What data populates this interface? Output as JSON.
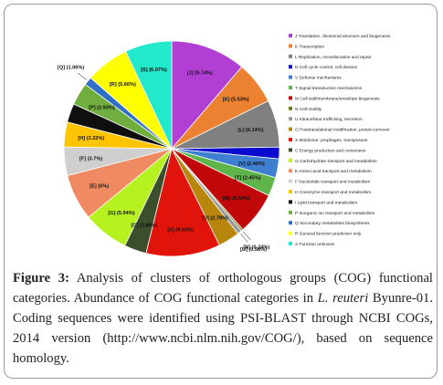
{
  "caption": {
    "figure_label": "Figure 3:",
    "text_part1": " Analysis of clusters of orthologous groups (COG) functional categories. Abundance of COG functional categories in ",
    "species": "L. reuteri",
    "text_part2": " Byunre-01. Coding sequences were identified using PSI-BLAST through NCBI COGs, 2014 version (http://www.ncbi.nlm.nih.gov/COG/), based on sequence homology."
  },
  "chart_data": {
    "type": "pie",
    "title": "",
    "slices": [
      {
        "code": "J",
        "label": "[J] (9.74%)",
        "value": 9.74,
        "color": "#b13fd4",
        "legend": "J Translation, ribosomal structure and biogenesis"
      },
      {
        "code": "K",
        "label": "[K] (5.53%)",
        "value": 5.53,
        "color": "#ec8132",
        "legend": "K Transcription"
      },
      {
        "code": "L",
        "label": "[L] (6.14%)",
        "value": 6.14,
        "color": "#808080",
        "legend": "L Replication, recombination and repair"
      },
      {
        "code": "D",
        "label": "",
        "value": 1.5,
        "color": "#0b0bcf",
        "legend": "D Cell cycle control, cell division"
      },
      {
        "code": "V",
        "label": "[V] (2.45%)",
        "value": 2.45,
        "color": "#3e7fd1",
        "legend": "V Defense mechanisms"
      },
      {
        "code": "T",
        "label": "[T] (2.45%)",
        "value": 2.45,
        "color": "#5fb54a",
        "legend": "T Signal transduction mechanisms"
      },
      {
        "code": "M",
        "label": "[M] (5.50%)",
        "value": 5.5,
        "color": "#c0080b",
        "legend": "M Cell wall/membrane/envelope biogenesis"
      },
      {
        "code": "N",
        "label": "[N] (0.24%)",
        "value": 0.24,
        "color": "#6d7f12",
        "legend": "N Cell motility"
      },
      {
        "code": "U",
        "label": "[U] (0.58%)",
        "value": 0.58,
        "color": "#9a9a9a",
        "legend": "U Intracellular trafficking, secretion"
      },
      {
        "code": "O",
        "label": "[O] (2.78%)",
        "value": 2.78,
        "color": "#b8860b",
        "legend": "O Posttranslational modification, protein turnover"
      },
      {
        "code": "X",
        "label": "[X] (9.63%)",
        "value": 9.63,
        "color": "#e1140c",
        "legend": "X Mobilome: prophages, transposons"
      },
      {
        "code": "C",
        "label": "[C] (2.88%)",
        "value": 2.88,
        "color": "#3b4f2c",
        "legend": "C Energy production and conversion"
      },
      {
        "code": "G",
        "label": "[G] (5.94%)",
        "value": 5.94,
        "color": "#b6f21f",
        "legend": "G Carbohydrate transport and metabolism"
      },
      {
        "code": "E",
        "label": "[E] (6%)",
        "value": 6.0,
        "color": "#f08a62",
        "legend": "E Amino-acid transport and metabolism"
      },
      {
        "code": "F",
        "label": "[F] (3.7%)",
        "value": 3.7,
        "color": "#cfcfcf",
        "legend": "F Nucleotide transport and metabolism"
      },
      {
        "code": "H",
        "label": "[H] (3.22%)",
        "value": 3.22,
        "color": "#ffc400",
        "legend": "H Coenzyme transport and metabolism"
      },
      {
        "code": "I",
        "label": "[I] (2.45%)",
        "value": 2.45,
        "color": "#0f0f0f",
        "legend": "I Lipid transport and metabolism"
      },
      {
        "code": "P",
        "label": "[P] (2.93%)",
        "value": 2.93,
        "color": "#6fae3f",
        "legend": "P Inorganic ion transport and metabolism"
      },
      {
        "code": "Q",
        "label": "[Q] (1.06%)",
        "value": 1.06,
        "color": "#2f6fc6",
        "legend": "Q Secondary metabolites biosynthesis"
      },
      {
        "code": "R",
        "label": "[R] (5.66%)",
        "value": 5.66,
        "color": "#ffff00",
        "legend": "R General function prediction only"
      },
      {
        "code": "S",
        "label": "[S] (6.07%)",
        "value": 6.07,
        "color": "#22e8cc",
        "legend": "S Function unknown"
      }
    ]
  }
}
